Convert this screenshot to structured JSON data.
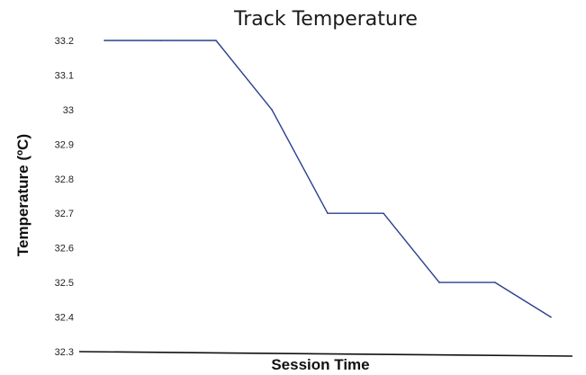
{
  "chart_data": {
    "type": "line",
    "title": "Track Temperature",
    "xlabel": "Session Time",
    "ylabel": "Temperature (ºC)",
    "ylim": [
      32.3,
      33.2
    ],
    "yticks": [
      "33.2",
      "33.1",
      "33",
      "32.9",
      "32.8",
      "32.7",
      "32.6",
      "32.5",
      "32.4",
      "32.3"
    ],
    "grid": false,
    "x": [
      1,
      2,
      3,
      4,
      5,
      6,
      7,
      8,
      9
    ],
    "series": [
      {
        "values": [
          33.2,
          33.2,
          33.2,
          33.0,
          32.7,
          32.7,
          32.5,
          32.5,
          32.4
        ],
        "color": "#2a3f8f"
      }
    ],
    "axis_color": "#111111"
  }
}
